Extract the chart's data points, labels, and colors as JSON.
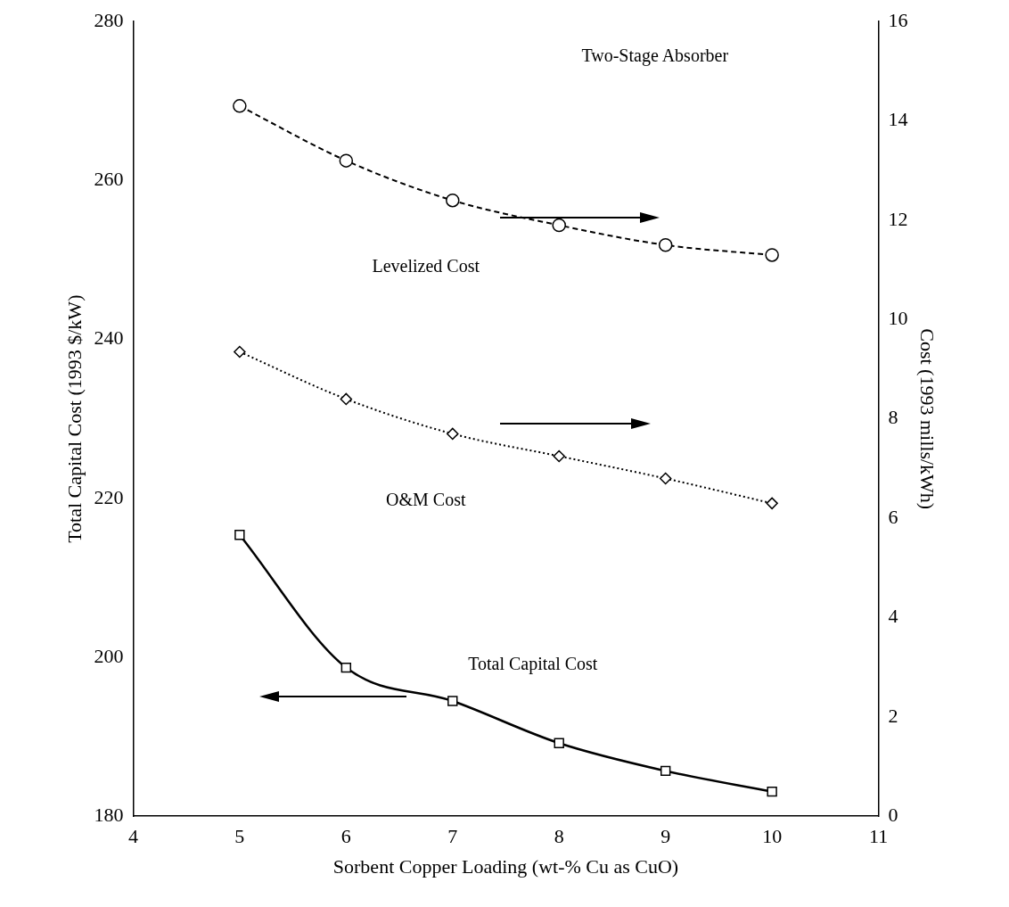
{
  "chart_data": {
    "type": "line",
    "xlabel": "Sorbent Copper Loading (wt-% Cu as CuO)",
    "ylabel": "Total Capital Cost (1993 $/kW)",
    "y2label": "Cost (1993 mills/kWh)",
    "annotations": [
      "Two-Stage Absorber"
    ],
    "x": [
      5,
      6,
      7,
      8,
      9,
      10
    ],
    "xlim": [
      4,
      11
    ],
    "xticks": [
      4,
      5,
      6,
      7,
      8,
      9,
      10,
      11
    ],
    "ylim": [
      180,
      280
    ],
    "yticks": [
      180,
      200,
      220,
      240,
      260,
      280
    ],
    "y2lim": [
      0,
      16
    ],
    "y2ticks": [
      0,
      2,
      4,
      6,
      8,
      10,
      12,
      14,
      16
    ],
    "grid": false,
    "legend": false,
    "series": [
      {
        "name": "Levelized Cost",
        "axis": "y2",
        "color": "#000000",
        "marker": "circle",
        "line_style": "dashed",
        "values": [
          14.3,
          13.2,
          12.4,
          11.9,
          11.5,
          11.3
        ]
      },
      {
        "name": "O&M Cost",
        "axis": "y2",
        "color": "#000000",
        "marker": "diamond",
        "line_style": "dotted",
        "values": [
          9.35,
          8.4,
          7.7,
          7.25,
          6.8,
          6.3
        ]
      },
      {
        "name": "Total Capital Cost",
        "axis": "y",
        "color": "#000000",
        "marker": "square",
        "line_style": "solid",
        "values": [
          215.4,
          198.7,
          194.5,
          189.2,
          185.7,
          183.1
        ]
      }
    ]
  }
}
